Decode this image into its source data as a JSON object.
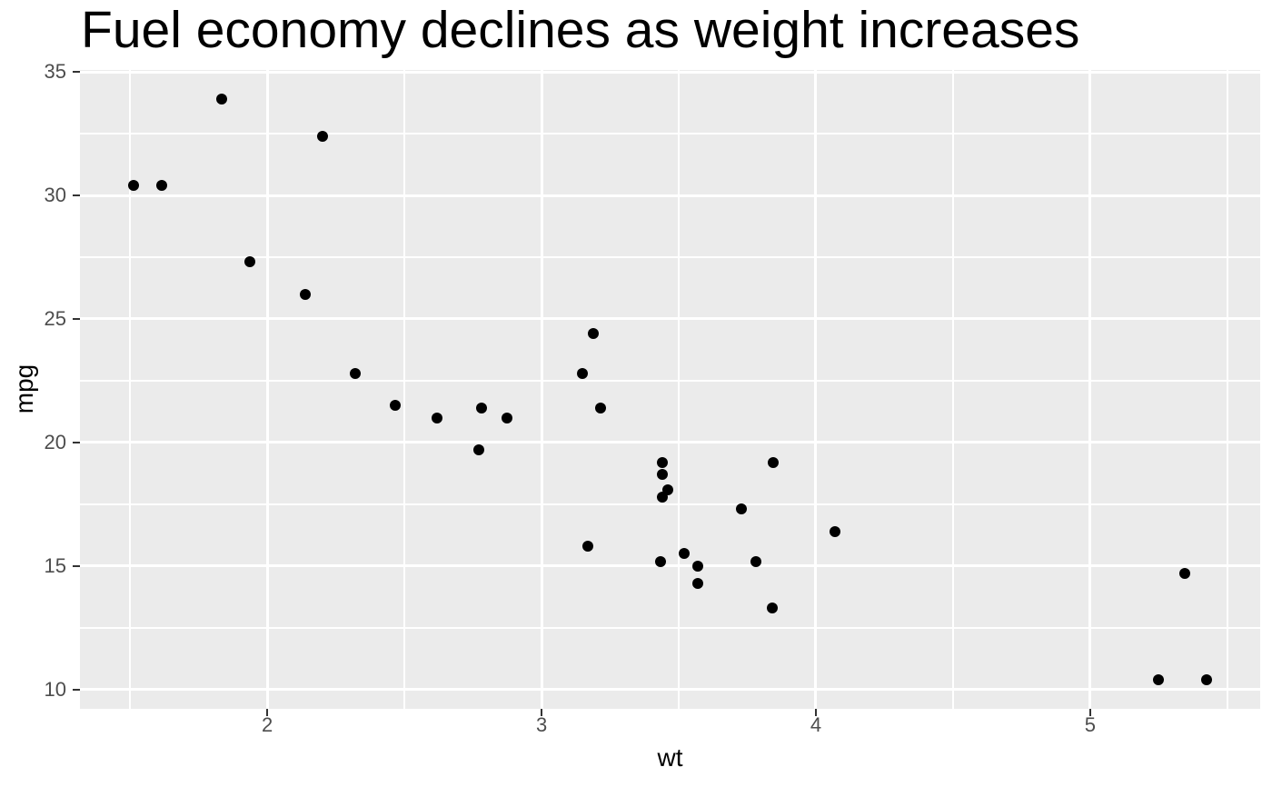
{
  "chart_data": {
    "type": "scatter",
    "title": "Fuel economy declines as weight increases",
    "xlabel": "wt",
    "ylabel": "mpg",
    "xlim": [
      1.317,
      5.62
    ],
    "ylim": [
      9.225,
      35.075
    ],
    "x_major_ticks": [
      2,
      3,
      4,
      5
    ],
    "y_major_ticks": [
      10,
      15,
      20,
      25,
      30,
      35
    ],
    "x_minor_gridlines": [
      1.5,
      2.5,
      3.5,
      4.5,
      5.5
    ],
    "y_minor_gridlines": [
      12.5,
      17.5,
      22.5,
      27.5,
      32.5
    ],
    "grid": "major+minor",
    "legend": "none",
    "points": [
      [
        2.62,
        21.0
      ],
      [
        2.875,
        21.0
      ],
      [
        2.32,
        22.8
      ],
      [
        3.215,
        21.4
      ],
      [
        3.44,
        18.7
      ],
      [
        3.46,
        18.1
      ],
      [
        3.57,
        14.3
      ],
      [
        3.19,
        24.4
      ],
      [
        3.15,
        22.8
      ],
      [
        3.44,
        19.2
      ],
      [
        3.44,
        17.8
      ],
      [
        4.07,
        16.4
      ],
      [
        3.73,
        17.3
      ],
      [
        3.78,
        15.2
      ],
      [
        5.25,
        10.4
      ],
      [
        5.424,
        10.4
      ],
      [
        5.345,
        14.7
      ],
      [
        2.2,
        32.4
      ],
      [
        1.615,
        30.4
      ],
      [
        1.835,
        33.9
      ],
      [
        2.465,
        21.5
      ],
      [
        3.52,
        15.5
      ],
      [
        3.435,
        15.2
      ],
      [
        3.84,
        13.3
      ],
      [
        3.845,
        19.2
      ],
      [
        1.935,
        27.3
      ],
      [
        2.14,
        26.0
      ],
      [
        1.513,
        30.4
      ],
      [
        3.17,
        15.8
      ],
      [
        2.77,
        19.7
      ],
      [
        3.57,
        15.0
      ],
      [
        2.78,
        21.4
      ]
    ],
    "colors": {
      "background": "#FFFFFF",
      "panel_bg": "#EBEBEB",
      "gridline": "#FFFFFF",
      "point": "#000000",
      "tick_label": "#4D4D4D",
      "tick_mark": "#333333",
      "title": "#000000",
      "axis_title": "#000000"
    }
  }
}
